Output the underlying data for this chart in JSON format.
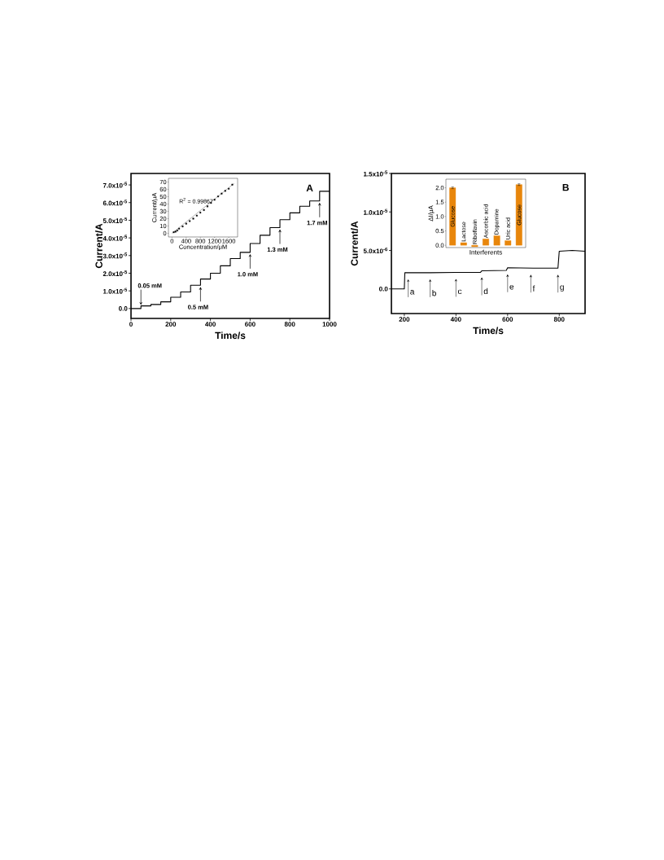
{
  "chart_data": [
    {
      "type": "step",
      "title": "A",
      "xlabel": "Time/s",
      "ylabel": "Current/A",
      "color": "#000000",
      "x": [
        0,
        50,
        100,
        150,
        200,
        250,
        300,
        350,
        400,
        450,
        500,
        550,
        600,
        650,
        700,
        750,
        800,
        850,
        900,
        950,
        1000
      ],
      "values": [
        0,
        1.5e-06,
        2.3e-06,
        3.8e-06,
        6.4e-06,
        9.4e-06,
        1.32e-05,
        1.67e-05,
        2e-05,
        2.42e-05,
        2.83e-05,
        3.18e-05,
        3.68e-05,
        4.15e-05,
        4.58e-05,
        5.03e-05,
        5.42e-05,
        5.79e-05,
        6.09e-05,
        6.64e-05,
        6.64e-05
      ],
      "xlim": [
        0,
        1000
      ],
      "ylim": [
        -5.6e-06,
        7.65e-05
      ],
      "xticks": [
        0,
        200,
        400,
        600,
        800,
        1000
      ],
      "yticks": [
        {
          "value": 0,
          "label": "0.0"
        },
        {
          "value": 1e-05,
          "label": "1.0x10$^{-5}$"
        },
        {
          "value": 2e-05,
          "label": "2.0x10$^{-5}$"
        },
        {
          "value": 3e-05,
          "label": "3.0x10$^{-5}$"
        },
        {
          "value": 4e-05,
          "label": "4.0x10$^{-5}$"
        },
        {
          "value": 5e-05,
          "label": "5.0x10$^{-5}$"
        },
        {
          "value": 6e-05,
          "label": "6.0x10$^{-5}$"
        },
        {
          "value": 7e-05,
          "label": "7.0x10$^{-5}$"
        }
      ],
      "annotations": [
        {
          "text": "0.05 mM",
          "x": 50,
          "y": 1.5e-06
        },
        {
          "text": "0.5 mM",
          "x": 350,
          "y": 1.32e-05
        },
        {
          "text": "1.0 mM",
          "x": 600,
          "y": 3.18e-05
        },
        {
          "text": "1.3 mM",
          "x": 750,
          "y": 4.58e-05
        },
        {
          "text": "1.7 mM",
          "x": 950,
          "y": 6.09e-05
        }
      ]
    },
    {
      "type": "scatter",
      "xlabel": "Concentration/μM",
      "ylabel": "Current/μA",
      "series": [
        {
          "type": "scatter",
          "marker": "square",
          "color": "#000000",
          "x": [
            50,
            100,
            150,
            200,
            300,
            400,
            500,
            600,
            700,
            800,
            900,
            1000,
            1100,
            1200,
            1300,
            1400,
            1500,
            1600,
            1700
          ],
          "values": [
            1.5,
            2.3,
            3.8,
            6.4,
            9.4,
            13.2,
            16.7,
            20,
            24.2,
            28.3,
            31.8,
            36.8,
            41.5,
            45.8,
            50.3,
            54.2,
            57.9,
            60.9,
            66.4
          ]
        },
        {
          "type": "line",
          "color": "#000000",
          "x": [
            0,
            1750
          ],
          "values": [
            0,
            68
          ]
        }
      ],
      "xlim": [
        -100,
        1850
      ],
      "ylim": [
        -5,
        75
      ],
      "xticks": [
        0,
        400,
        800,
        1200,
        1600
      ],
      "yticks": [
        0,
        10,
        20,
        30,
        40,
        50,
        60,
        70
      ],
      "annotations": [
        "R$^{2}$ = 0.99867"
      ]
    },
    {
      "type": "line",
      "title": "B",
      "xlabel": "Time/s",
      "ylabel": "Current/A",
      "color": "#000000",
      "x": [
        150,
        200,
        202,
        300,
        400,
        495,
        500,
        595,
        600,
        700,
        795,
        800,
        850,
        900
      ],
      "values": [
        0,
        0,
        2.1e-06,
        2.1e-06,
        2.15e-06,
        2.15e-06,
        2.35e-06,
        2.4e-06,
        2.75e-06,
        2.7e-06,
        2.7e-06,
        4.9e-06,
        5e-06,
        4.9e-06
      ],
      "xlim": [
        150,
        900
      ],
      "ylim": [
        -3.2e-06,
        1.5e-05
      ],
      "xticks": [
        200,
        400,
        600,
        800
      ],
      "yticks": [
        {
          "value": 0,
          "label": "0.0"
        },
        {
          "value": 5e-06,
          "label": "5.0x10$^{-6}$"
        },
        {
          "value": 1e-05,
          "label": "1.0x10$^{-5}$"
        },
        {
          "value": 1.5e-05,
          "label": "1.5x10$^{-5}$"
        }
      ],
      "annotations": [
        {
          "text": "a",
          "x": 215,
          "y": 2.1e-06
        },
        {
          "text": "b",
          "x": 300,
          "y": 2.1e-06
        },
        {
          "text": "c",
          "x": 400,
          "y": 2.15e-06
        },
        {
          "text": "d",
          "x": 500,
          "y": 2.35e-06
        },
        {
          "text": "e",
          "x": 600,
          "y": 2.75e-06
        },
        {
          "text": "f",
          "x": 690,
          "y": 2.7e-06
        },
        {
          "text": "g",
          "x": 795,
          "y": 2.7e-06
        }
      ]
    },
    {
      "type": "bar",
      "xlabel": "Interferents",
      "ylabel": "ΔI/μA",
      "color": "#e8860b",
      "categories": [
        "Glucose",
        "Lactose",
        "Riboflavin",
        "Ascorbic acid",
        "Dopamine",
        "Uric acid",
        "Glucose"
      ],
      "values": [
        2.0,
        0.09,
        -0.05,
        0.22,
        0.33,
        0.16,
        2.11
      ],
      "errors": [
        0.03,
        null,
        null,
        null,
        null,
        null,
        0.03
      ],
      "ylim": [
        -0.08,
        2.3
      ],
      "yticks": [
        {
          "value": 0,
          "label": "0.0"
        },
        {
          "value": 0.5,
          "label": "0.5"
        },
        {
          "value": 1.0,
          "label": "1.0"
        },
        {
          "value": 1.5,
          "label": "1.5"
        },
        {
          "value": 2.0,
          "label": "2.0"
        }
      ]
    }
  ]
}
